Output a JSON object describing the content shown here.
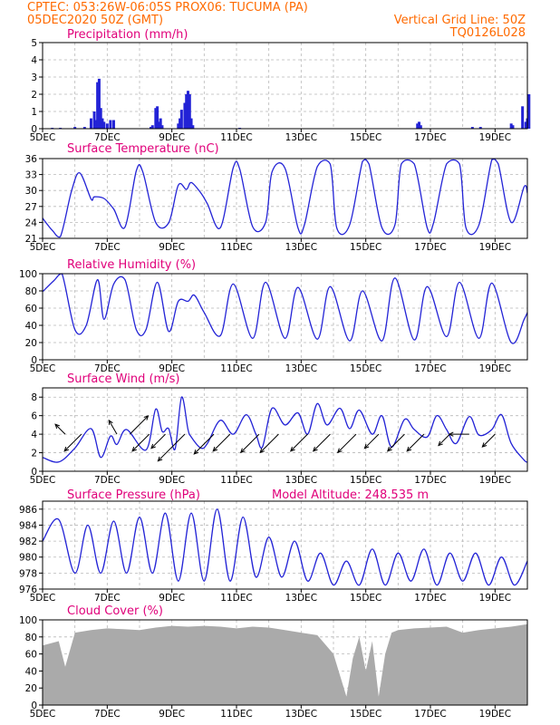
{
  "header": {
    "line1": "CPTEC:   053:26W-06:05S   PROX06: TUCUMA (PA)",
    "line2_left": "05DEC2020 50Z (GMT)",
    "line2_right": "Vertical Grid Line: 50Z",
    "line3_right": "TQ0126L028"
  },
  "colors": {
    "header": "#ff6a00",
    "title": "#e0007a",
    "series": "#2323d6",
    "cloud": "#aaaaaa"
  },
  "chart_data": [
    {
      "type": "bar",
      "title": "Precipitation (mm/h)",
      "ylim": [
        0,
        5
      ],
      "yticks": [
        0,
        1,
        2,
        3,
        4,
        5
      ],
      "x": [
        0.3,
        0.55,
        1.0,
        1.3,
        1.5,
        1.6,
        1.65,
        1.7,
        1.75,
        1.8,
        1.85,
        1.9,
        2.0,
        2.1,
        2.2,
        3.35,
        3.4,
        3.5,
        3.55,
        3.6,
        3.65,
        3.7,
        4.2,
        4.25,
        4.3,
        4.4,
        4.45,
        4.5,
        4.55,
        4.6,
        4.65,
        6.1,
        11.6,
        11.65,
        11.7,
        13.3,
        13.55,
        14.5,
        14.55,
        14.85,
        14.95,
        15.0,
        15.05
      ],
      "values": [
        0.05,
        0.05,
        0.1,
        0.1,
        0.6,
        1.0,
        0.5,
        2.7,
        2.9,
        1.2,
        0.6,
        0.4,
        0.3,
        0.5,
        0.5,
        0.1,
        0.2,
        1.2,
        1.3,
        0.4,
        0.6,
        0.2,
        0.3,
        0.6,
        1.1,
        1.5,
        2.0,
        2.2,
        2.0,
        0.6,
        0.2,
        0.05,
        0.3,
        0.4,
        0.2,
        0.1,
        0.1,
        0.3,
        0.2,
        1.3,
        0.4,
        0.6,
        2.0
      ]
    },
    {
      "type": "line",
      "title": "Surface Temperature (nC)",
      "ylim": [
        21,
        36
      ],
      "yticks": [
        21,
        24,
        27,
        30,
        33,
        36
      ],
      "x": [
        0,
        0.3,
        0.55,
        0.9,
        1.15,
        1.5,
        1.6,
        1.9,
        2.2,
        2.55,
        2.9,
        3.1,
        3.5,
        3.9,
        4.2,
        4.45,
        4.6,
        4.9,
        5.1,
        5.5,
        5.9,
        6.1,
        6.5,
        6.9,
        7.1,
        7.5,
        7.9,
        8.1,
        8.5,
        8.9,
        9.1,
        9.5,
        9.9,
        10.1,
        10.5,
        10.9,
        11.1,
        11.5,
        11.9,
        12.1,
        12.5,
        12.9,
        13.1,
        13.5,
        13.9,
        14.1,
        14.5,
        14.9,
        15.0
      ],
      "values": [
        24.8,
        22.5,
        21.3,
        30.0,
        33.3,
        28.4,
        28.8,
        28.5,
        26.5,
        23.1,
        33.7,
        33.5,
        24.0,
        23.9,
        31.0,
        30.2,
        31.5,
        29.5,
        27.5,
        23.0,
        34.3,
        34.0,
        23.2,
        24.0,
        33.5,
        34.2,
        23.0,
        23.5,
        34.5,
        35.0,
        23.0,
        23.5,
        35.5,
        35.0,
        23.0,
        23.5,
        35.0,
        35.0,
        23.0,
        24.0,
        35.0,
        35.0,
        23.0,
        23.5,
        35.8,
        35.0,
        24.0,
        30.7,
        29.5
      ]
    },
    {
      "type": "line",
      "title": "Relative Humidity (%)",
      "ylim": [
        0,
        100
      ],
      "yticks": [
        0,
        20,
        40,
        60,
        80,
        100
      ],
      "x": [
        0,
        0.35,
        0.6,
        1.0,
        1.35,
        1.7,
        1.9,
        2.2,
        2.55,
        2.9,
        3.2,
        3.55,
        3.9,
        4.2,
        4.5,
        4.7,
        5.0,
        5.5,
        5.9,
        6.5,
        6.9,
        7.5,
        7.9,
        8.5,
        8.9,
        9.5,
        9.9,
        10.5,
        10.9,
        11.5,
        11.9,
        12.5,
        12.9,
        13.5,
        13.9,
        14.5,
        14.9,
        15.0
      ],
      "values": [
        79,
        92,
        100,
        35,
        40,
        93,
        47,
        88,
        93,
        35,
        35,
        90,
        33,
        68,
        68,
        75,
        55,
        28,
        88,
        25,
        90,
        25,
        84,
        24,
        85,
        22,
        80,
        22,
        95,
        23,
        85,
        27,
        90,
        25,
        89,
        20,
        47,
        55
      ]
    },
    {
      "type": "line",
      "title": "Surface Wind (m/s)",
      "ylim": [
        0,
        9
      ],
      "yticks": [
        0,
        2,
        4,
        6,
        8
      ],
      "x": [
        0,
        0.5,
        1.0,
        1.5,
        1.8,
        2.1,
        2.3,
        2.6,
        3.2,
        3.5,
        3.7,
        3.9,
        4.1,
        4.3,
        4.5,
        4.6,
        4.9,
        5.1,
        5.5,
        5.9,
        6.3,
        6.6,
        6.8,
        7.1,
        7.5,
        7.9,
        8.2,
        8.5,
        8.8,
        9.2,
        9.5,
        9.8,
        10.2,
        10.5,
        10.8,
        11.2,
        11.5,
        11.9,
        12.2,
        12.5,
        12.8,
        13.2,
        13.5,
        13.9,
        14.2,
        14.5,
        14.9,
        15.0
      ],
      "values": [
        1.5,
        1.0,
        2.5,
        4.6,
        1.5,
        3.8,
        2.9,
        4.5,
        2.3,
        6.7,
        4.3,
        4.6,
        2.4,
        8.0,
        4.5,
        3.7,
        2.5,
        3.0,
        5.5,
        4.0,
        6.1,
        4.0,
        2.6,
        6.8,
        5.0,
        6.3,
        4.0,
        7.3,
        5.0,
        6.8,
        4.6,
        6.6,
        4.0,
        6.0,
        2.6,
        5.6,
        4.5,
        3.7,
        6.0,
        4.5,
        3.0,
        5.9,
        3.9,
        4.5,
        6.1,
        3.0,
        1.2,
        1.0
      ]
    },
    {
      "type": "line",
      "title": "Surface Pressure (hPa)",
      "annotation": "Model Altitude: 248.535  m",
      "ylim": [
        976,
        987
      ],
      "yticks": [
        976,
        978,
        980,
        982,
        984,
        986
      ],
      "x": [
        0,
        0.5,
        1.0,
        1.4,
        1.8,
        2.2,
        2.6,
        3.0,
        3.4,
        3.8,
        4.2,
        4.6,
        5.0,
        5.4,
        5.8,
        6.2,
        6.6,
        7.0,
        7.4,
        7.8,
        8.2,
        8.6,
        9.0,
        9.4,
        9.8,
        10.2,
        10.6,
        11.0,
        11.4,
        11.8,
        12.2,
        12.6,
        13.0,
        13.4,
        13.8,
        14.2,
        14.6,
        15.0
      ],
      "values": [
        982,
        984.7,
        978,
        984,
        978,
        984.5,
        978,
        985,
        978,
        985.5,
        977,
        985.5,
        977,
        986,
        977,
        985,
        977.5,
        982.5,
        977.5,
        982,
        977,
        980.5,
        976.5,
        979.5,
        976.5,
        981,
        976.5,
        980.5,
        977,
        981,
        976.5,
        980.5,
        977,
        980.5,
        976.5,
        980,
        976.5,
        979.5
      ]
    },
    {
      "type": "bar",
      "title": "Cloud Cover (%)",
      "ylim": [
        0,
        100
      ],
      "yticks": [
        0,
        20,
        40,
        60,
        80,
        100
      ],
      "x": [
        0,
        0.5,
        0.7,
        1.0,
        1.5,
        2.0,
        2.5,
        3.0,
        3.5,
        4.0,
        4.5,
        5.0,
        5.5,
        6.0,
        6.5,
        7.0,
        7.5,
        8.0,
        8.5,
        9.0,
        9.4,
        9.6,
        9.8,
        10.0,
        10.2,
        10.4,
        10.6,
        10.8,
        11.0,
        11.5,
        12.0,
        12.5,
        13.0,
        13.5,
        14.0,
        14.5,
        15.0
      ],
      "values": [
        70,
        75,
        45,
        85,
        88,
        90,
        89,
        88,
        91,
        93,
        92,
        93,
        92,
        90,
        92,
        91,
        88,
        85,
        82,
        60,
        10,
        55,
        80,
        40,
        75,
        10,
        60,
        85,
        88,
        90,
        91,
        92,
        85,
        88,
        90,
        92,
        95
      ]
    }
  ],
  "xaxis_labels": [
    "5DEC",
    "7DEC",
    "9DEC",
    "11DEC",
    "13DEC",
    "15DEC",
    "17DEC",
    "19DEC"
  ],
  "xaxis_positions": [
    0,
    2,
    4,
    6,
    8,
    10,
    12,
    14
  ],
  "xaxis_range": [
    0,
    15
  ],
  "wind_arrows": [
    {
      "x": 0.7,
      "dir": 315,
      "len": 0.7
    },
    {
      "x": 1.2,
      "dir": 225,
      "len": 1.2
    },
    {
      "x": 2.3,
      "dir": 330,
      "len": 0.8
    },
    {
      "x": 2.7,
      "dir": 45,
      "len": 1.3
    },
    {
      "x": 3.3,
      "dir": 225,
      "len": 1.2
    },
    {
      "x": 3.8,
      "dir": 225,
      "len": 1.0
    },
    {
      "x": 4.4,
      "dir": 225,
      "len": 1.9
    },
    {
      "x": 5.3,
      "dir": 225,
      "len": 1.4
    },
    {
      "x": 5.8,
      "dir": 225,
      "len": 1.2
    },
    {
      "x": 6.7,
      "dir": 225,
      "len": 1.3
    },
    {
      "x": 7.3,
      "dir": 225,
      "len": 1.3
    },
    {
      "x": 8.2,
      "dir": 225,
      "len": 1.2
    },
    {
      "x": 8.9,
      "dir": 225,
      "len": 1.2
    },
    {
      "x": 9.7,
      "dir": 225,
      "len": 1.3
    },
    {
      "x": 10.4,
      "dir": 225,
      "len": 1.0
    },
    {
      "x": 11.2,
      "dir": 225,
      "len": 1.2
    },
    {
      "x": 11.8,
      "dir": 225,
      "len": 1.2
    },
    {
      "x": 12.6,
      "dir": 225,
      "len": 0.8
    },
    {
      "x": 13.2,
      "dir": 270,
      "len": 1.0
    },
    {
      "x": 14.0,
      "dir": 225,
      "len": 0.9
    }
  ]
}
